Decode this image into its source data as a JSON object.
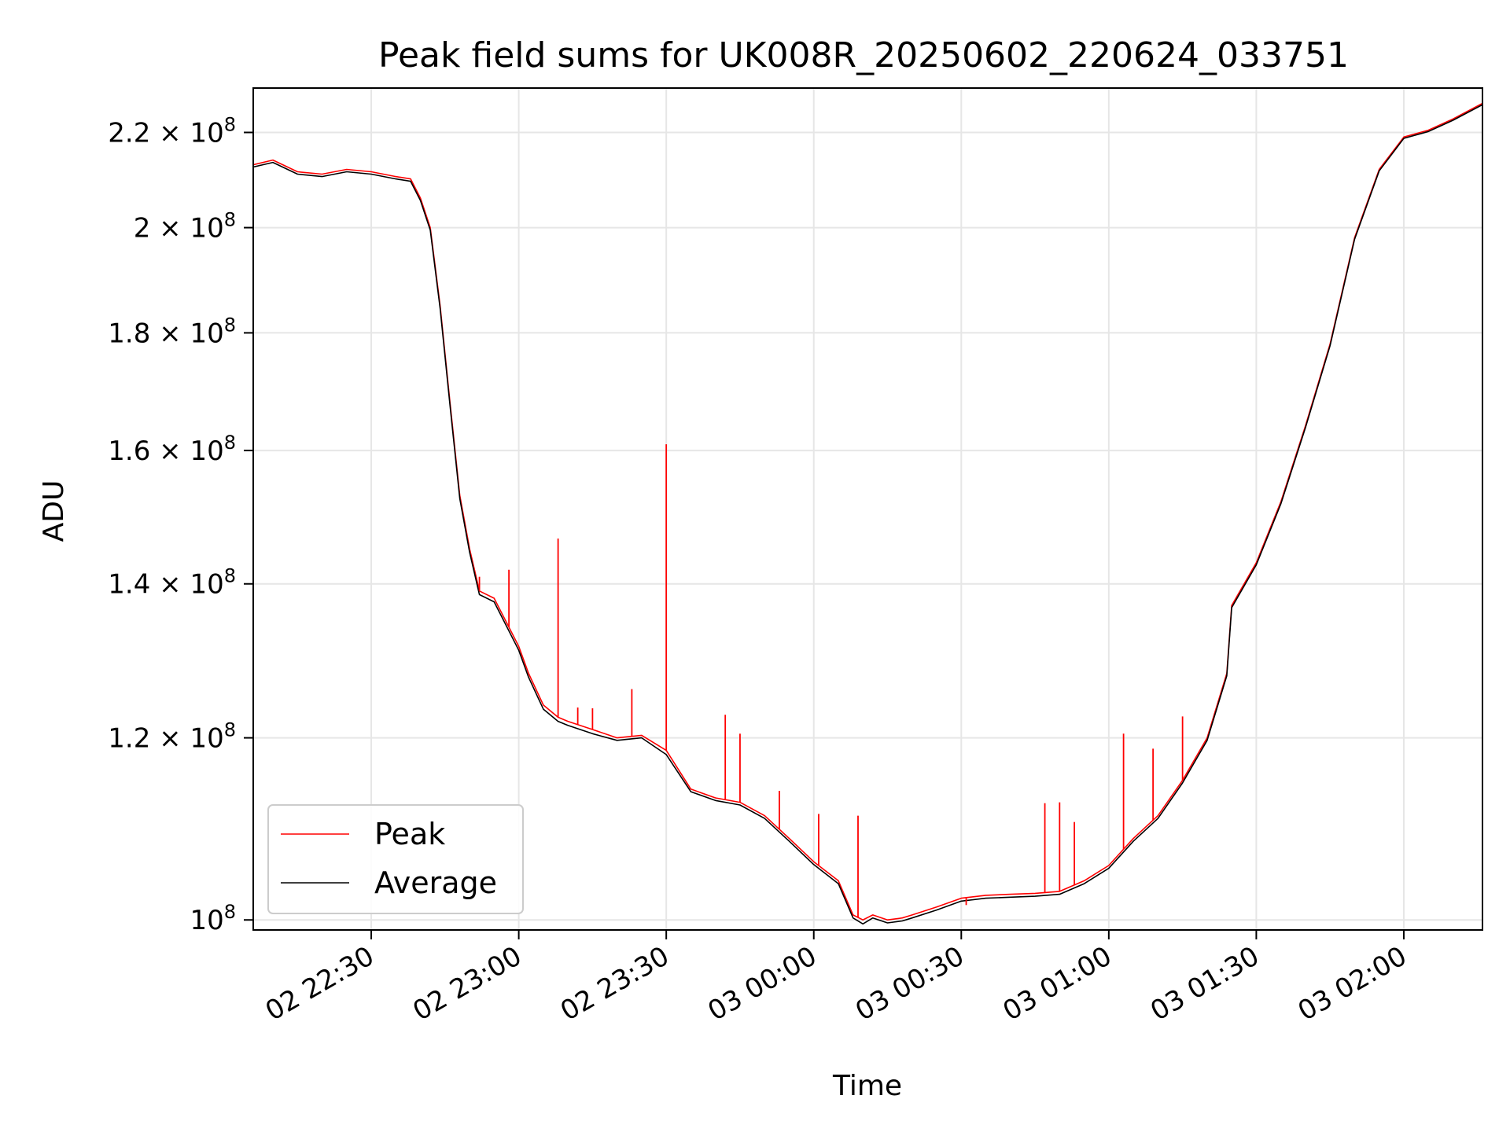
{
  "chart_data": {
    "type": "line",
    "title": "Peak field sums for UK008R_20250602_220624_033751",
    "xlabel": "Time",
    "ylabel": "ADU",
    "x_unit": "time (2025-06-02 22:06 to 2025-06-03 02:16)",
    "xlim": [
      "02 22:06",
      "03 02:16"
    ],
    "ylim": [
      99000000,
      230000000
    ],
    "yscale": "log",
    "grid": true,
    "legend_position": "lower-left",
    "x_ticks": [
      "02 22:30",
      "02 23:00",
      "02 23:30",
      "03 00:00",
      "03 00:30",
      "03 01:00",
      "03 01:30",
      "03 02:00"
    ],
    "y_ticks": [
      {
        "value": 100000000,
        "mantissa": "",
        "exp": "8",
        "label": "10^8"
      },
      {
        "value": 120000000,
        "mantissa": "1.2",
        "exp": "8",
        "label": "1.2×10^8"
      },
      {
        "value": 140000000,
        "mantissa": "1.4",
        "exp": "8",
        "label": "1.4×10^8"
      },
      {
        "value": 160000000,
        "mantissa": "1.6",
        "exp": "8",
        "label": "1.6×10^8"
      },
      {
        "value": 180000000,
        "mantissa": "1.8",
        "exp": "8",
        "label": "1.8×10^8"
      },
      {
        "value": 200000000,
        "mantissa": "2",
        "exp": "8",
        "label": "2×10^8"
      },
      {
        "value": 220000000,
        "mantissa": "2.2",
        "exp": "8",
        "label": "2.2×10^8"
      }
    ],
    "x": [
      "02 22:06",
      "02 22:10",
      "02 22:15",
      "02 22:20",
      "02 22:25",
      "02 22:30",
      "02 22:35",
      "02 22:38",
      "02 22:40",
      "02 22:42",
      "02 22:44",
      "02 22:46",
      "02 22:48",
      "02 22:50",
      "02 22:52",
      "02 22:55",
      "02 23:00",
      "02 23:02",
      "02 23:05",
      "02 23:08",
      "02 23:10",
      "02 23:15",
      "02 23:20",
      "02 23:25",
      "02 23:30",
      "02 23:35",
      "02 23:40",
      "02 23:45",
      "02 23:50",
      "02 23:55",
      "03 00:00",
      "03 00:05",
      "03 00:08",
      "03 00:10",
      "03 00:12",
      "03 00:15",
      "03 00:18",
      "03 00:20",
      "03 00:25",
      "03 00:30",
      "03 00:35",
      "03 00:40",
      "03 00:45",
      "03 00:50",
      "03 00:55",
      "03 01:00",
      "03 01:05",
      "03 01:10",
      "03 01:15",
      "03 01:20",
      "03 01:24",
      "03 01:25",
      "03 01:30",
      "03 01:35",
      "03 01:40",
      "03 01:45",
      "03 01:50",
      "03 01:55",
      "03 02:00",
      "03 02:05",
      "03 02:10",
      "03 02:16"
    ],
    "series": [
      {
        "name": "Peak",
        "color": "#ff0000",
        "values": [
          213000000,
          214000000,
          211500000,
          211000000,
          212000000,
          211500000,
          210500000,
          210000000,
          206000000,
          200000000,
          185000000,
          168000000,
          153000000,
          145000000,
          139000000,
          138000000,
          131500000,
          128000000,
          124000000,
          122500000,
          122000000,
          121000000,
          120000000,
          120300000,
          118500000,
          114000000,
          113000000,
          112500000,
          111000000,
          108500000,
          106000000,
          104000000,
          100500000,
          100000000,
          100500000,
          100000000,
          100200000,
          100500000,
          101300000,
          102200000,
          102500000,
          102600000,
          102700000,
          102900000,
          104000000,
          105600000,
          108500000,
          111000000,
          115000000,
          120000000,
          128000000,
          137000000,
          143000000,
          152000000,
          164000000,
          178000000,
          198000000,
          212000000,
          219000000,
          220500000,
          223000000,
          226500000
        ]
      },
      {
        "name": "Average",
        "color": "#000000",
        "values": [
          212500000,
          213500000,
          211000000,
          210500000,
          211500000,
          211000000,
          210000000,
          209500000,
          205500000,
          199500000,
          184500000,
          167500000,
          152500000,
          144500000,
          138500000,
          137500000,
          131000000,
          127500000,
          123500000,
          122000000,
          121500000,
          120500000,
          119700000,
          120000000,
          118000000,
          113700000,
          112700000,
          112200000,
          110700000,
          108200000,
          105700000,
          103700000,
          100200000,
          99600000,
          100200000,
          99700000,
          99900000,
          100200000,
          101000000,
          101900000,
          102200000,
          102300000,
          102400000,
          102600000,
          103700000,
          105300000,
          108200000,
          110700000,
          114700000,
          119700000,
          127700000,
          136700000,
          142700000,
          151700000,
          163700000,
          177700000,
          197700000,
          211700000,
          218700000,
          220200000,
          222700000,
          226200000
        ]
      }
    ],
    "spikes": [
      {
        "x": "02 22:52",
        "value": 141000000
      },
      {
        "x": "02 22:58",
        "value": 142000000
      },
      {
        "x": "02 23:08",
        "value": 146500000
      },
      {
        "x": "02 23:12",
        "value": 123700000
      },
      {
        "x": "02 23:15",
        "value": 123600000
      },
      {
        "x": "02 23:23",
        "value": 126000000
      },
      {
        "x": "02 23:30",
        "value": 161000000
      },
      {
        "x": "02 23:42",
        "value": 122800000
      },
      {
        "x": "02 23:45",
        "value": 120500000
      },
      {
        "x": "02 23:53",
        "value": 113800000
      },
      {
        "x": "03 00:01",
        "value": 111200000
      },
      {
        "x": "03 00:09",
        "value": 111000000
      },
      {
        "x": "03 00:31",
        "value": 101500000
      },
      {
        "x": "03 00:47",
        "value": 112400000
      },
      {
        "x": "03 00:50",
        "value": 112500000
      },
      {
        "x": "03 00:53",
        "value": 110300000
      },
      {
        "x": "03 01:03",
        "value": 120500000
      },
      {
        "x": "03 01:09",
        "value": 118700000
      },
      {
        "x": "03 01:15",
        "value": 122600000
      }
    ]
  },
  "legend": {
    "peak_label": "Peak",
    "average_label": "Average"
  }
}
